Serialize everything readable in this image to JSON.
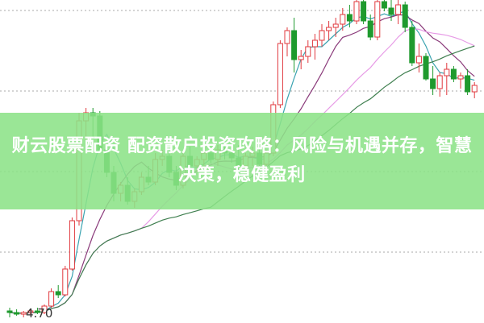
{
  "title": "财云股票配资 配资散户投资攻略：风险与机遇并存，智慧决策，稳健盈利",
  "chart_data": {
    "type": "candlestick",
    "price_label": "4.70",
    "grid": "horizontal dotted",
    "colors": {
      "up": "#e0393e",
      "down": "#1f9a2e",
      "ma5": "#3aa3b0",
      "ma10": "#8a3a7a",
      "ma20": "#e79be6",
      "ma60": "#3f7f4f",
      "banner": "#8ce287"
    },
    "moving_averages": [
      5,
      10,
      20,
      30
    ],
    "candles": [
      [
        4.72,
        4.74,
        4.68,
        4.71
      ],
      [
        4.71,
        4.73,
        4.69,
        4.7
      ],
      [
        4.7,
        4.72,
        4.68,
        4.71
      ],
      [
        4.71,
        4.73,
        4.7,
        4.72
      ],
      [
        4.72,
        4.74,
        4.7,
        4.71
      ],
      [
        4.71,
        4.76,
        4.7,
        4.75
      ],
      [
        4.75,
        4.86,
        4.74,
        4.84
      ],
      [
        4.84,
        4.88,
        4.8,
        4.82
      ],
      [
        4.82,
        5.0,
        4.81,
        4.98
      ],
      [
        4.98,
        5.3,
        4.97,
        5.28
      ],
      [
        5.28,
        5.95,
        5.25,
        5.9
      ],
      [
        5.9,
        5.98,
        5.7,
        5.95
      ],
      [
        5.95,
        5.98,
        5.8,
        5.93
      ],
      [
        5.93,
        5.96,
        5.7,
        5.72
      ],
      [
        5.72,
        5.75,
        5.55,
        5.58
      ],
      [
        5.58,
        5.62,
        5.4,
        5.45
      ],
      [
        5.45,
        5.52,
        5.4,
        5.5
      ],
      [
        5.5,
        5.55,
        5.38,
        5.4
      ],
      [
        5.4,
        5.48,
        5.36,
        5.46
      ],
      [
        5.46,
        5.58,
        5.44,
        5.55
      ],
      [
        5.55,
        5.62,
        5.5,
        5.52
      ],
      [
        5.52,
        5.7,
        5.5,
        5.66
      ],
      [
        5.66,
        5.72,
        5.62,
        5.68
      ],
      [
        5.68,
        5.74,
        5.55,
        5.58
      ],
      [
        5.58,
        5.62,
        5.47,
        5.5
      ],
      [
        5.5,
        5.7,
        5.48,
        5.68
      ],
      [
        5.68,
        5.74,
        5.6,
        5.62
      ],
      [
        5.62,
        5.68,
        5.58,
        5.66
      ],
      [
        5.66,
        5.72,
        5.62,
        5.7
      ],
      [
        5.7,
        5.74,
        5.64,
        5.66
      ],
      [
        5.66,
        5.75,
        5.62,
        5.72
      ],
      [
        5.72,
        5.76,
        5.66,
        5.7
      ],
      [
        5.7,
        5.74,
        5.64,
        5.67
      ],
      [
        5.67,
        5.75,
        5.6,
        5.62
      ],
      [
        5.62,
        5.7,
        5.58,
        5.68
      ],
      [
        5.68,
        5.74,
        5.62,
        5.7
      ],
      [
        5.7,
        5.75,
        5.6,
        5.63
      ],
      [
        5.63,
        5.72,
        5.6,
        5.7
      ],
      [
        5.7,
        6.02,
        5.68,
        6.0
      ],
      [
        6.0,
        6.4,
        5.98,
        6.38
      ],
      [
        6.38,
        6.48,
        6.3,
        6.46
      ],
      [
        6.46,
        6.54,
        6.2,
        6.28
      ],
      [
        6.28,
        6.34,
        6.22,
        6.3
      ],
      [
        6.3,
        6.4,
        6.26,
        6.36
      ],
      [
        6.36,
        6.44,
        6.28,
        6.4
      ],
      [
        6.4,
        6.5,
        6.36,
        6.46
      ],
      [
        6.46,
        6.52,
        6.4,
        6.48
      ],
      [
        6.48,
        6.54,
        6.42,
        6.5
      ],
      [
        6.5,
        6.6,
        6.46,
        6.56
      ],
      [
        6.56,
        6.62,
        6.48,
        6.52
      ],
      [
        6.52,
        6.66,
        6.5,
        6.64
      ],
      [
        6.64,
        6.66,
        6.5,
        6.52
      ],
      [
        6.52,
        6.56,
        6.4,
        6.42
      ],
      [
        6.42,
        6.66,
        6.4,
        6.64
      ],
      [
        6.64,
        6.66,
        6.58,
        6.6
      ],
      [
        6.6,
        6.66,
        6.52,
        6.56
      ],
      [
        6.56,
        6.66,
        6.5,
        6.62
      ],
      [
        6.62,
        6.64,
        6.45,
        6.48
      ],
      [
        6.48,
        6.52,
        6.24,
        6.26
      ],
      [
        6.26,
        6.38,
        6.2,
        6.3
      ],
      [
        6.3,
        6.32,
        6.15,
        6.16
      ],
      [
        6.16,
        6.24,
        6.06,
        6.1
      ],
      [
        6.1,
        6.2,
        6.05,
        6.18
      ],
      [
        6.18,
        6.26,
        6.06,
        6.22
      ],
      [
        6.22,
        6.24,
        6.14,
        6.16
      ],
      [
        6.16,
        6.2,
        6.1,
        6.18
      ],
      [
        6.18,
        6.22,
        6.06,
        6.08
      ],
      [
        6.08,
        6.14,
        6.04,
        6.12
      ]
    ]
  }
}
